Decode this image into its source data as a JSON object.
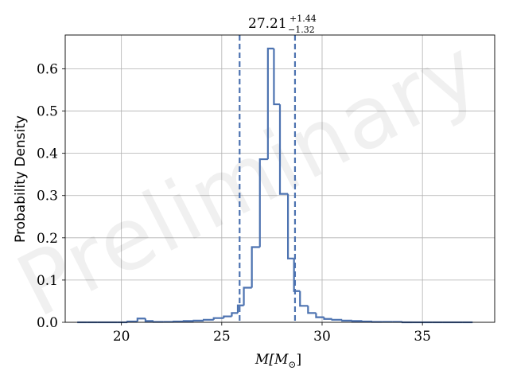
{
  "chart_data": {
    "type": "histogram",
    "title": "",
    "xlabel_main": "M[M",
    "xlabel_sub": "⊙",
    "xlabel_end": "]",
    "ylabel": "Probability Density",
    "xlim": [
      17.2,
      38.6
    ],
    "ylim": [
      0.0,
      0.68
    ],
    "xticks": [
      20,
      25,
      30,
      35
    ],
    "xtick_labels": [
      "20",
      "25",
      "30",
      "35"
    ],
    "yticks": [
      0.0,
      0.1,
      0.2,
      0.3,
      0.4,
      0.5,
      0.6
    ],
    "ytick_labels": [
      "0.0",
      "0.1",
      "0.2",
      "0.3",
      "0.4",
      "0.5",
      "0.6"
    ],
    "grid": true,
    "line_color": "#4c72b0",
    "bin_edges": [
      17.8,
      18.3,
      18.8,
      19.3,
      19.8,
      20.3,
      20.8,
      21.2,
      21.6,
      22.1,
      22.6,
      23.1,
      23.6,
      24.1,
      24.6,
      25.1,
      25.5,
      25.8,
      26.1,
      26.5,
      26.9,
      27.3,
      27.6,
      27.9,
      28.3,
      28.6,
      28.9,
      29.3,
      29.7,
      30.1,
      30.5,
      31.0,
      31.5,
      32.0,
      32.5,
      33.0,
      33.5,
      34.0,
      34.5,
      35.0,
      35.5,
      36.0,
      36.5,
      37.0,
      37.5
    ],
    "density": [
      0.0,
      0.0,
      0.0,
      0.0,
      0.0,
      0.002,
      0.009,
      0.003,
      0.001,
      0.001,
      0.002,
      0.003,
      0.004,
      0.006,
      0.01,
      0.014,
      0.022,
      0.04,
      0.082,
      0.178,
      0.386,
      0.648,
      0.516,
      0.304,
      0.151,
      0.074,
      0.039,
      0.022,
      0.012,
      0.008,
      0.006,
      0.004,
      0.003,
      0.002,
      0.001,
      0.001,
      0.001,
      0.0,
      0.0,
      0.0,
      0.0,
      0.0,
      0.0,
      0.0
    ],
    "credible_interval": {
      "lower": 25.89,
      "upper": 28.65
    },
    "annotation": {
      "median": "27.21",
      "plus": "+1.44",
      "minus": "−1.32"
    },
    "watermark": "Preliminary"
  }
}
